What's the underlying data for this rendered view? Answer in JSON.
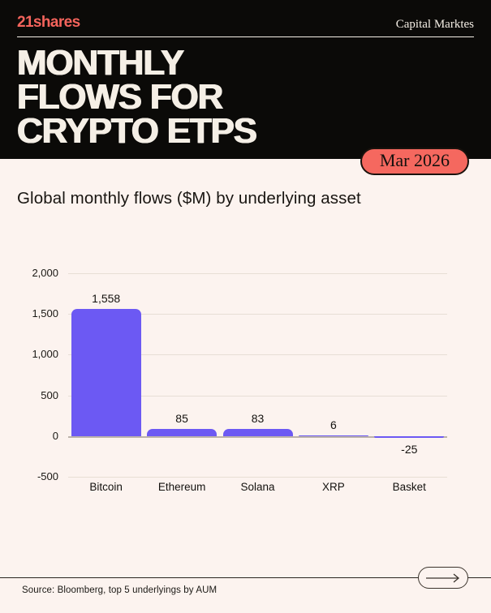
{
  "header": {
    "logo": "21shares",
    "department": "Capital Marktes",
    "title_lines": [
      "MONTHLY",
      "FLOWS FOR",
      "CRYPTO ETPS"
    ],
    "badge": "Mar 2026"
  },
  "subtitle": "Global monthly flows ($M) by underlying asset",
  "chart_data": {
    "type": "bar",
    "title": "Global monthly flows ($M) by underlying asset",
    "categories": [
      "Bitcoin",
      "Ethereum",
      "Solana",
      "XRP",
      "Basket"
    ],
    "values": [
      1558,
      85,
      83,
      6,
      -25
    ],
    "value_labels": [
      "1,558",
      "85",
      "83",
      "6",
      "-25"
    ],
    "yticks": [
      {
        "value": 2000,
        "label": "2,000"
      },
      {
        "value": 1500,
        "label": "1,500"
      },
      {
        "value": 1000,
        "label": "1,000"
      },
      {
        "value": 500,
        "label": "500"
      },
      {
        "value": 0,
        "label": "0"
      },
      {
        "value": -500,
        "label": "-500"
      }
    ],
    "ylim": [
      -500,
      2000
    ],
    "xlabel": "",
    "ylabel": "",
    "grid": true,
    "legend": false,
    "bar_color": "#6C59F3"
  },
  "footer": {
    "source": "Source: Bloomberg, top 5 underlyings by AUM",
    "arrow_icon": "arrow-right-icon"
  },
  "colors": {
    "background": "#FCF3EF",
    "header_bg": "#0B0A08",
    "accent_coral": "#F4645C",
    "badge_coral": "#F5685F",
    "title_text": "#F5EFE6",
    "bar_purple": "#6C59F3",
    "gridline": "#E7DED5",
    "zero_line": "#BCB3AA"
  }
}
